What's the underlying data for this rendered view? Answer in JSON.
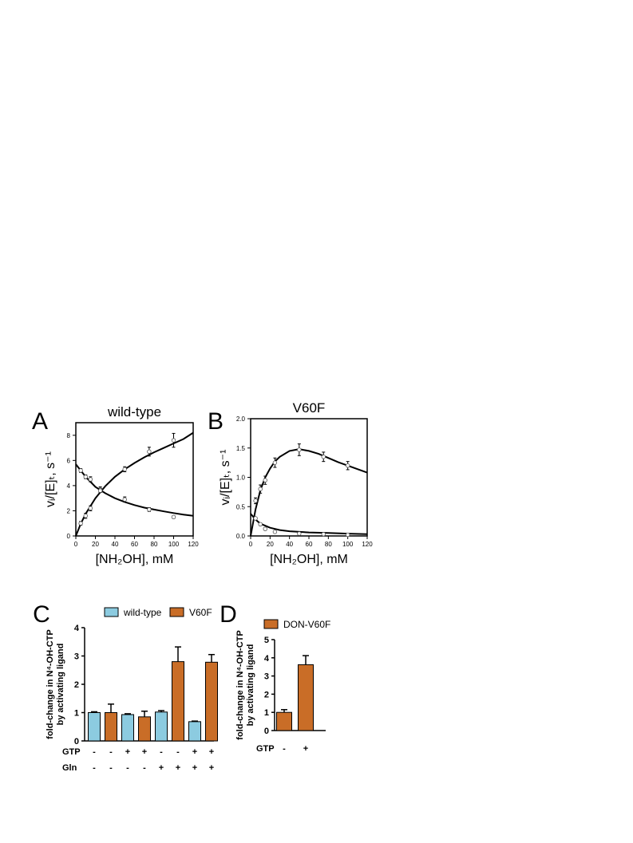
{
  "colors": {
    "wild_type": "#8ccbe0",
    "v60f": "#c96d27",
    "don_v60f": "#c96d27",
    "axis": "#000000"
  },
  "chart_data": [
    {
      "panel": "A",
      "type": "scatter",
      "title": "wild-type",
      "xlabel": "[NH₂OH], mM",
      "ylabel": "vᵢ/[E]ₜ, s⁻¹",
      "xlim": [
        0,
        120
      ],
      "ylim": [
        0,
        9
      ],
      "xticks": [
        "0",
        "20",
        "40",
        "60",
        "80",
        "100",
        "120"
      ],
      "yticks": [
        "0",
        "2",
        "4",
        "6",
        "8"
      ],
      "series": [
        {
          "key": "increasing",
          "marker": "open-circle",
          "x": [
            5,
            10,
            15,
            25,
            50,
            75,
            100
          ],
          "y": [
            1.0,
            1.6,
            2.2,
            3.7,
            5.3,
            6.7,
            7.6
          ],
          "err": [
            0.15,
            0.2,
            0.2,
            0.2,
            0.2,
            0.35,
            0.55
          ],
          "fit_x": [
            0,
            5,
            10,
            20,
            30,
            40,
            50,
            60,
            70,
            80,
            90,
            100,
            110,
            120
          ],
          "fit_y": [
            0,
            0.96,
            1.76,
            3.0,
            3.95,
            4.7,
            5.3,
            5.8,
            6.25,
            6.65,
            7.0,
            7.35,
            7.7,
            8.2
          ]
        },
        {
          "key": "decreasing",
          "marker": "open-circle",
          "x": [
            5,
            10,
            15,
            25,
            50,
            75,
            100
          ],
          "y": [
            5.2,
            4.7,
            4.5,
            3.6,
            2.9,
            2.1,
            1.5
          ],
          "err": [
            0.15,
            0.15,
            0.2,
            0.15,
            0.2,
            0.15,
            0.1
          ],
          "fit_x": [
            0,
            10,
            20,
            30,
            40,
            50,
            60,
            70,
            80,
            90,
            100,
            110,
            120
          ],
          "fit_y": [
            5.7,
            4.7,
            3.9,
            3.4,
            3.0,
            2.7,
            2.45,
            2.25,
            2.1,
            1.95,
            1.82,
            1.7,
            1.6
          ]
        }
      ]
    },
    {
      "panel": "B",
      "type": "scatter",
      "title": "V60F",
      "xlabel": "[NH₂OH], mM",
      "ylabel": "vᵢ/[E]ₜ, s⁻¹",
      "xlim": [
        0,
        120
      ],
      "ylim": [
        0,
        2.0
      ],
      "xticks": [
        "0",
        "20",
        "40",
        "60",
        "80",
        "100",
        "120"
      ],
      "yticks": [
        "0.0",
        "0.5",
        "1.0",
        "1.5",
        "2.0"
      ],
      "series": [
        {
          "key": "increasing",
          "marker": "open-circle",
          "x": [
            5,
            10,
            15,
            25,
            50,
            75,
            100
          ],
          "y": [
            0.6,
            0.8,
            0.95,
            1.25,
            1.47,
            1.35,
            1.2
          ],
          "err": [
            0.05,
            0.07,
            0.07,
            0.08,
            0.1,
            0.08,
            0.07
          ],
          "fit_x": [
            0,
            5,
            10,
            15,
            20,
            25,
            30,
            40,
            50,
            60,
            70,
            80,
            90,
            100,
            110,
            120
          ],
          "fit_y": [
            0,
            0.45,
            0.78,
            1.0,
            1.15,
            1.27,
            1.35,
            1.45,
            1.48,
            1.45,
            1.4,
            1.33,
            1.26,
            1.2,
            1.14,
            1.08
          ]
        },
        {
          "key": "decreasing",
          "marker": "open-circle",
          "x": [
            5,
            10,
            15,
            25,
            50,
            75,
            100
          ],
          "y": [
            0.3,
            0.2,
            0.12,
            0.07,
            0.04,
            0.03,
            0.02
          ],
          "err": [
            0.02,
            0.02,
            0.02,
            0.01,
            0.01,
            0.01,
            0.01
          ],
          "fit_x": [
            0,
            5,
            10,
            20,
            30,
            40,
            60,
            80,
            100,
            120
          ],
          "fit_y": [
            0.38,
            0.28,
            0.21,
            0.14,
            0.1,
            0.08,
            0.06,
            0.05,
            0.04,
            0.03
          ]
        }
      ]
    },
    {
      "panel": "C",
      "type": "bar",
      "ylabel_line1": "fold-change in N⁴-OH-CTP",
      "ylabel_line2": "by activating ligand",
      "ylim": [
        0,
        4
      ],
      "yticks": [
        "0",
        "1",
        "2",
        "3",
        "4"
      ],
      "legend": [
        {
          "label": "wild-type",
          "color_key": "wild_type"
        },
        {
          "label": "V60F",
          "color_key": "v60f"
        }
      ],
      "row_labels": [
        "GTP",
        "Gln"
      ],
      "bars": [
        {
          "series": "wild_type",
          "value": 1.0,
          "err": 0.03,
          "gtp": "-",
          "gln": "-"
        },
        {
          "series": "v60f",
          "value": 1.0,
          "err": 0.3,
          "gtp": "-",
          "gln": "-"
        },
        {
          "series": "wild_type",
          "value": 0.93,
          "err": 0.03,
          "gtp": "+",
          "gln": "-"
        },
        {
          "series": "v60f",
          "value": 0.85,
          "err": 0.2,
          "gtp": "+",
          "gln": "-"
        },
        {
          "series": "wild_type",
          "value": 1.02,
          "err": 0.05,
          "gtp": "-",
          "gln": "+"
        },
        {
          "series": "v60f",
          "value": 2.8,
          "err": 0.52,
          "gtp": "-",
          "gln": "+"
        },
        {
          "series": "wild_type",
          "value": 0.68,
          "err": 0.02,
          "gtp": "+",
          "gln": "+"
        },
        {
          "series": "v60f",
          "value": 2.78,
          "err": 0.27,
          "gtp": "+",
          "gln": "+"
        }
      ]
    },
    {
      "panel": "D",
      "type": "bar",
      "ylabel_line1": "fold-change in N⁴-OH-CTP",
      "ylabel_line2": "by activating ligand",
      "ylim": [
        0,
        5
      ],
      "yticks": [
        "0",
        "1",
        "2",
        "3",
        "4",
        "5"
      ],
      "legend": [
        {
          "label": "DON-V60F",
          "color_key": "don_v60f"
        }
      ],
      "row_labels": [
        "GTP"
      ],
      "bars": [
        {
          "series": "don_v60f",
          "value": 1.0,
          "err": 0.15,
          "gtp": "-"
        },
        {
          "series": "don_v60f",
          "value": 3.62,
          "err": 0.5,
          "gtp": "+"
        }
      ]
    }
  ]
}
